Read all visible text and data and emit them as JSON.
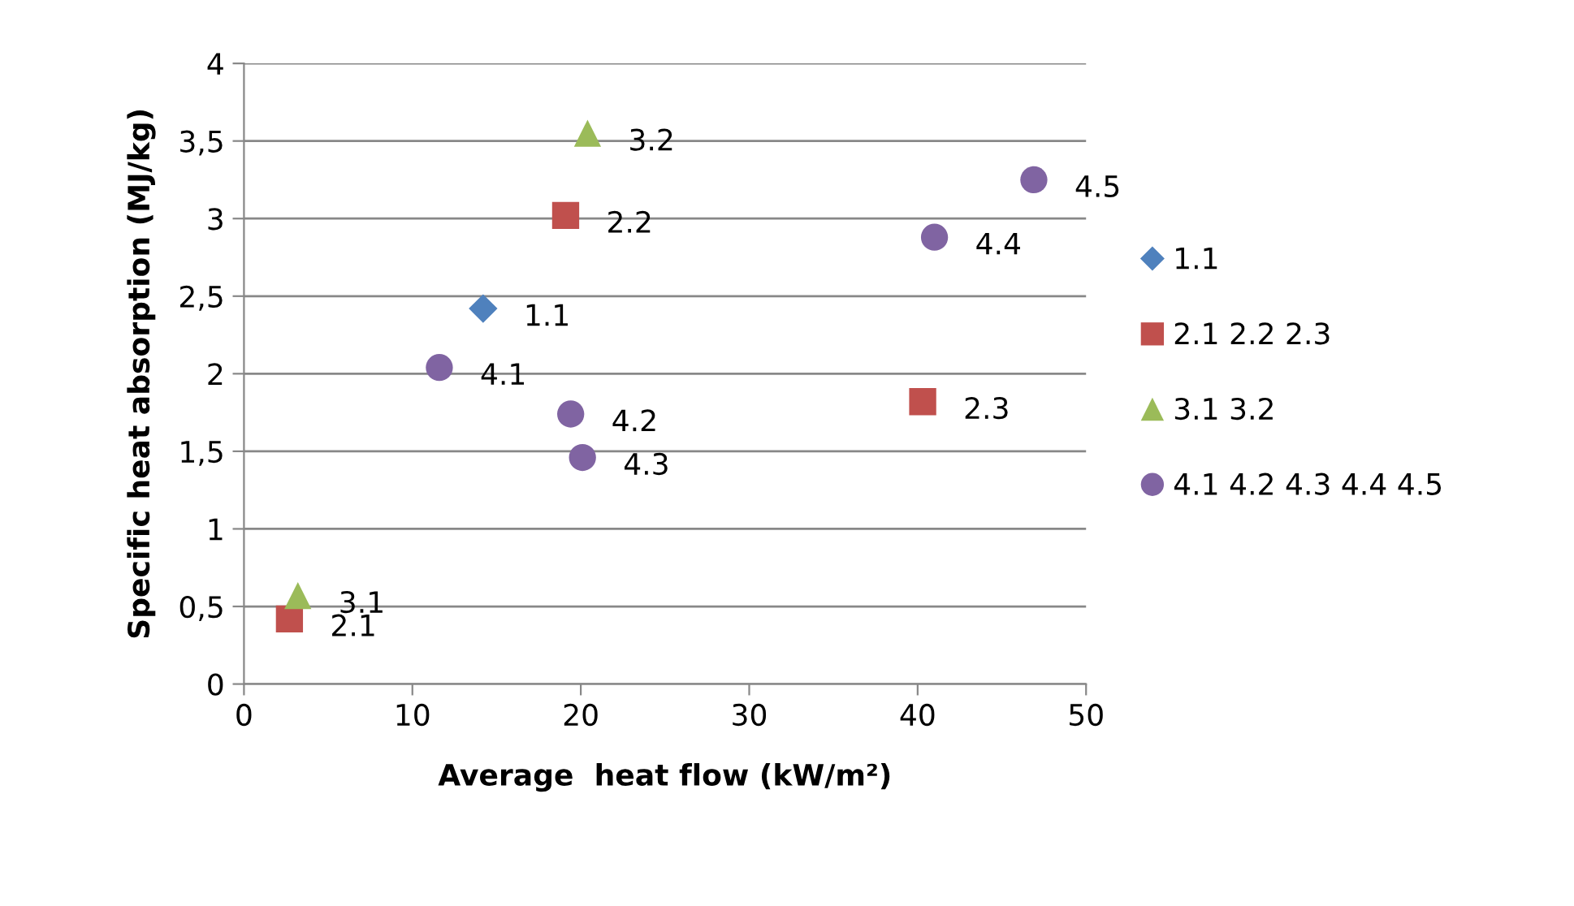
{
  "chart_data": {
    "type": "scatter",
    "xlabel": "Average  heat flow (kW/m²)",
    "ylabel": "Specific heat absorption (MJ/kg)",
    "xlim": [
      0,
      50
    ],
    "xticks": [
      0,
      10,
      20,
      30,
      40,
      50
    ],
    "ylim": [
      0,
      4
    ],
    "yticks": [
      0,
      {
        "value": 0.5,
        "label": "0,5"
      },
      1,
      {
        "value": 1.5,
        "label": "1,5"
      },
      2,
      {
        "value": 2.5,
        "label": "2,5"
      },
      3,
      {
        "value": 3.5,
        "label": "3,5"
      },
      4
    ],
    "grid": "y",
    "legend": "right",
    "series": [
      {
        "name": "1.1",
        "color": "#4f81bd",
        "marker": "diamond",
        "x": [
          14.2
        ],
        "values": [
          2.42
        ]
      },
      {
        "name": "2.1 2.2 2.3",
        "color": "#c0504d",
        "marker": "square",
        "x": [
          2.7,
          19.1,
          40.3
        ],
        "values": [
          0.42,
          3.02,
          1.82
        ]
      },
      {
        "name": "3.1 3.2",
        "color": "#9bbb59",
        "marker": "triangle",
        "x": [
          3.2,
          20.4
        ],
        "values": [
          0.57,
          3.55
        ]
      },
      {
        "name": "4.1 4.2 4.3 4.4 4.5",
        "color": "#8064a2",
        "marker": "circle",
        "x": [
          11.6,
          19.4,
          20.1,
          41.0,
          46.9
        ],
        "values": [
          2.04,
          1.74,
          1.46,
          2.88,
          3.25
        ]
      }
    ],
    "annotations": [
      {
        "text": "1.1",
        "x": 14.2,
        "y": 2.42
      },
      {
        "text": "2.1",
        "x": 2.7,
        "y": 0.42
      },
      {
        "text": "2.2",
        "x": 19.1,
        "y": 3.02
      },
      {
        "text": "2.3",
        "x": 40.3,
        "y": 1.82
      },
      {
        "text": "3.1",
        "x": 3.2,
        "y": 0.57
      },
      {
        "text": "3.2",
        "x": 20.4,
        "y": 3.55
      },
      {
        "text": "4.1",
        "x": 11.6,
        "y": 2.04
      },
      {
        "text": "4.2",
        "x": 19.4,
        "y": 1.74
      },
      {
        "text": "4.3",
        "x": 20.1,
        "y": 1.46
      },
      {
        "text": "4.4",
        "x": 41.0,
        "y": 2.88
      },
      {
        "text": "4.5",
        "x": 46.9,
        "y": 3.25
      }
    ]
  }
}
